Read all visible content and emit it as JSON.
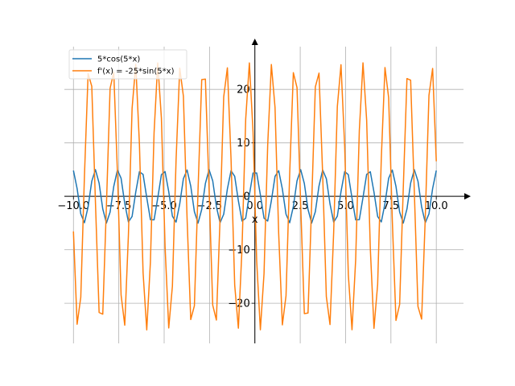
{
  "chart_data": {
    "type": "line",
    "xlabel": "x",
    "ylabel": "",
    "xlim": [
      -10.5,
      11.5
    ],
    "ylim": [
      -27.5,
      28
    ],
    "grid": true,
    "legend_position": "top-left",
    "x_ticks": [
      -10.0,
      -7.5,
      -5.0,
      -2.5,
      0.0,
      2.5,
      5.0,
      7.5,
      10.0
    ],
    "x_tick_labels": [
      "−10.0",
      "−7.5",
      "−5.0",
      "−2.5",
      "0.0",
      "2.5",
      "5.0",
      "7.5",
      "10.0"
    ],
    "y_ticks": [
      -20,
      -10,
      0,
      10,
      20
    ],
    "y_tick_labels": [
      "−20",
      "−10",
      "0",
      "10",
      "20"
    ],
    "sampling": {
      "start": -10,
      "end": 10,
      "count": 100
    },
    "series": [
      {
        "name": "5*cos(5*x)",
        "color": "#1f77b4",
        "expression": "5*cos(5*x)"
      },
      {
        "name": "f'(x) = -25*sin(5*x)",
        "color": "#ff7f0e",
        "expression": "-25*sin(5*x)"
      }
    ]
  }
}
